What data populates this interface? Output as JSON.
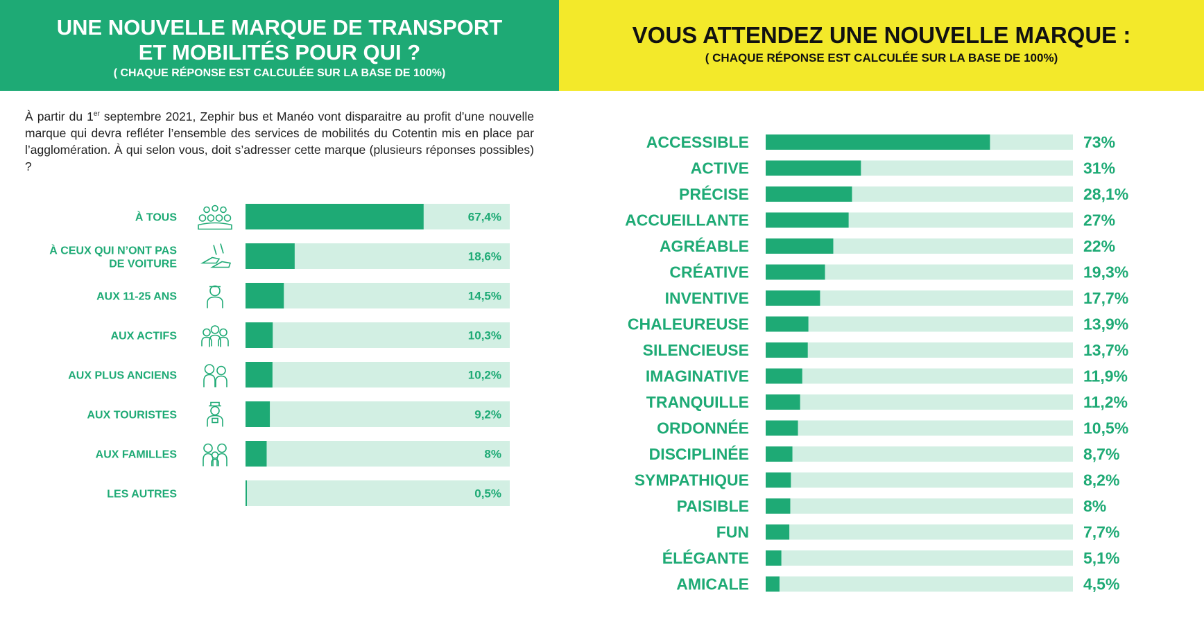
{
  "colors": {
    "bar": "#1eaa75",
    "track": "#d2efe3",
    "label": "#1eaa75",
    "left_header_bg": "#1eaa75",
    "right_header_bg": "#f3e92a"
  },
  "left_header": {
    "title_line1": "UNE NOUVELLE MARQUE DE TRANSPORT",
    "title_line2": "ET MOBILITÉS POUR QUI ?",
    "subtitle": "( CHAQUE RÉPONSE EST CALCULÉE SUR LA BASE DE 100%)"
  },
  "right_header": {
    "title": "VOUS ATTENDEZ UNE NOUVELLE MARQUE :",
    "subtitle": "( CHAQUE RÉPONSE EST CALCULÉE SUR LA BASE DE 100%)"
  },
  "intro": {
    "part1": "À partir du 1",
    "sup": "er",
    "part2": " septembre 2021, Zephir bus et Manéo vont disparaitre au profit d’une nouvelle marque qui devra refléter l’ensemble des services de mobilités du Cotentin mis en place par l’agglomération. À qui selon vous, doit s’adresser cette marque (plusieurs réponses possibles) ?"
  },
  "chart_data": [
    {
      "type": "bar",
      "orientation": "horizontal",
      "title": "UNE NOUVELLE MARQUE DE TRANSPORT ET MOBILITÉS POUR QUI ?",
      "xlim": [
        0,
        100
      ],
      "grid": false,
      "categories": [
        [
          "À TOUS"
        ],
        [
          "À CEUX QUI N’ONT PAS",
          "DE VOITURE"
        ],
        [
          "AUX 11-25 ANS"
        ],
        [
          "AUX ACTIFS"
        ],
        [
          "AUX PLUS ANCIENS"
        ],
        [
          "AUX TOURISTES"
        ],
        [
          "AUX FAMILLES"
        ],
        [
          "LES AUTRES"
        ]
      ],
      "values": [
        67.4,
        18.6,
        14.5,
        10.3,
        10.2,
        9.2,
        8,
        0.5
      ],
      "value_labels": [
        "67,4%",
        "18,6%",
        "14,5%",
        "10,3%",
        "10,2%",
        "9,2%",
        "8%",
        "0,5%"
      ],
      "icons": [
        "crowd-icon",
        "walking-feet-icon",
        "young-person-icon",
        "workers-icon",
        "elderly-couple-icon",
        "tourist-icon",
        "family-icon",
        ""
      ]
    },
    {
      "type": "bar",
      "orientation": "horizontal",
      "title": "VOUS ATTENDEZ UNE NOUVELLE MARQUE :",
      "xlim": [
        0,
        100
      ],
      "grid": false,
      "categories": [
        "ACCESSIBLE",
        "ACTIVE",
        "PRÉCISE",
        "ACCUEILLANTE",
        "AGRÉABLE",
        "CRÉATIVE",
        "INVENTIVE",
        "CHALEUREUSE",
        "SILENCIEUSE",
        "IMAGINATIVE",
        "TRANQUILLE",
        "ORDONNÉE",
        "DISCIPLINÉE",
        "SYMPATHIQUE",
        "PAISIBLE",
        "FUN",
        "ÉLÉGANTE",
        "AMICALE"
      ],
      "values": [
        73,
        31,
        28.1,
        27,
        22,
        19.3,
        17.7,
        13.9,
        13.7,
        11.9,
        11.2,
        10.5,
        8.7,
        8.2,
        8,
        7.7,
        5.1,
        4.5
      ],
      "value_labels": [
        "73%",
        "31%",
        "28,1%",
        "27%",
        "22%",
        "19,3%",
        "17,7%",
        "13,9%",
        "13,7%",
        "11,9%",
        "11,2%",
        "10,5%",
        "8,7%",
        "8,2%",
        "8%",
        "7,7%",
        "5,1%",
        "4,5%"
      ]
    }
  ]
}
